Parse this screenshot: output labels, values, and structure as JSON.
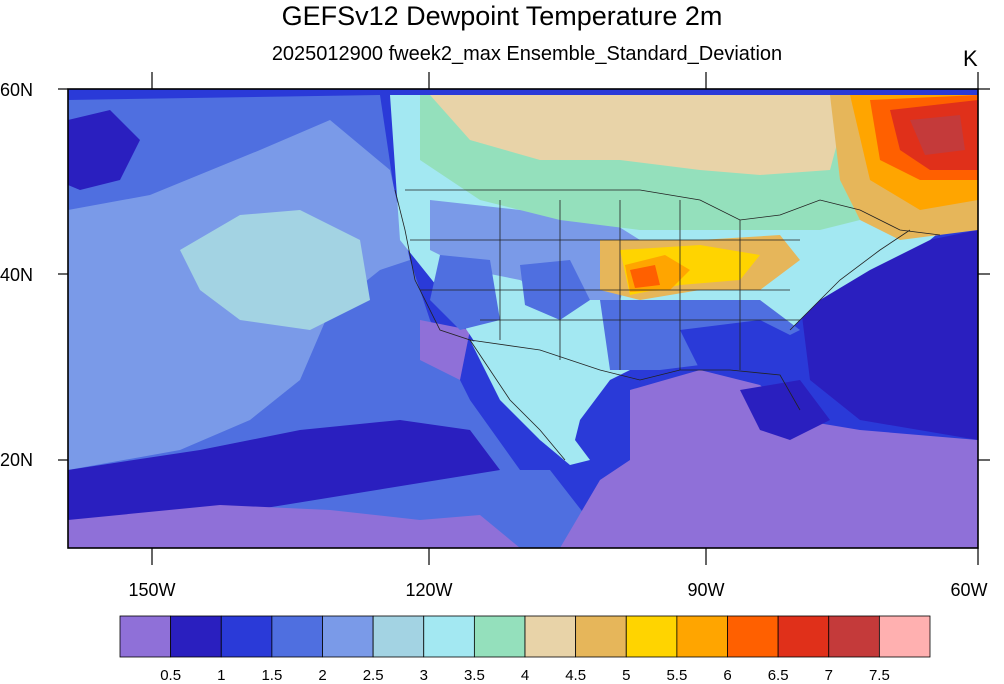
{
  "title": "GEFSv12 Dewpoint Temperature 2m",
  "subtitle": "2025012900 fweek2_max Ensemble_Standard_Deviation",
  "units": "K",
  "lat_labels": [
    "60N",
    "40N",
    "20N"
  ],
  "lon_labels": [
    "150W",
    "120W",
    "90W",
    "60W"
  ],
  "colorbar": {
    "colors": [
      "#8f70d8",
      "#2a1fbf",
      "#2a3ad8",
      "#4f6fe0",
      "#7a9ae8",
      "#a3d3e3",
      "#a3e8f2",
      "#94e0bc",
      "#e8d3a8",
      "#e6b65a",
      "#ffd400",
      "#ffa500",
      "#ff6000",
      "#e0301a",
      "#c43a3a",
      "#ffb0b0"
    ],
    "labels": [
      "0.5",
      "1",
      "1.5",
      "2",
      "2.5",
      "3",
      "3.5",
      "4",
      "4.5",
      "5",
      "5.5",
      "6",
      "6.5",
      "7",
      "7.5"
    ]
  }
}
